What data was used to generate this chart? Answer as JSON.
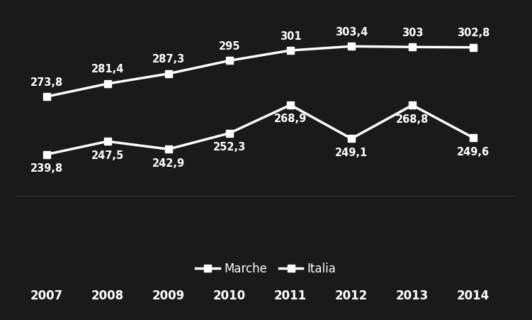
{
  "years": [
    2007,
    2008,
    2009,
    2010,
    2011,
    2012,
    2013,
    2014
  ],
  "italia": [
    273.8,
    281.4,
    287.3,
    295.0,
    301.0,
    303.4,
    303.0,
    302.8
  ],
  "marche": [
    239.8,
    247.5,
    242.9,
    252.3,
    268.9,
    249.1,
    268.8,
    249.6
  ],
  "italia_labels": [
    "273,8",
    "281,4",
    "287,3",
    "295",
    "301",
    "303,4",
    "303",
    "302,8"
  ],
  "marche_labels": [
    "239,8",
    "247,5",
    "242,9",
    "252,3",
    "268,9",
    "249,1",
    "268,8",
    "249,6"
  ],
  "italia_series": "Italia",
  "marche_series": "Marche",
  "line_color": "#ffffff",
  "bg_color": "#1a1a1a",
  "text_color": "#ffffff",
  "marker": "s",
  "markersize": 7,
  "linewidth": 2.5,
  "label_fontsize": 10.5,
  "tick_fontsize": 12,
  "legend_fontsize": 12,
  "ylim": [
    215,
    325
  ],
  "xlim": [
    2006.5,
    2014.7
  ]
}
